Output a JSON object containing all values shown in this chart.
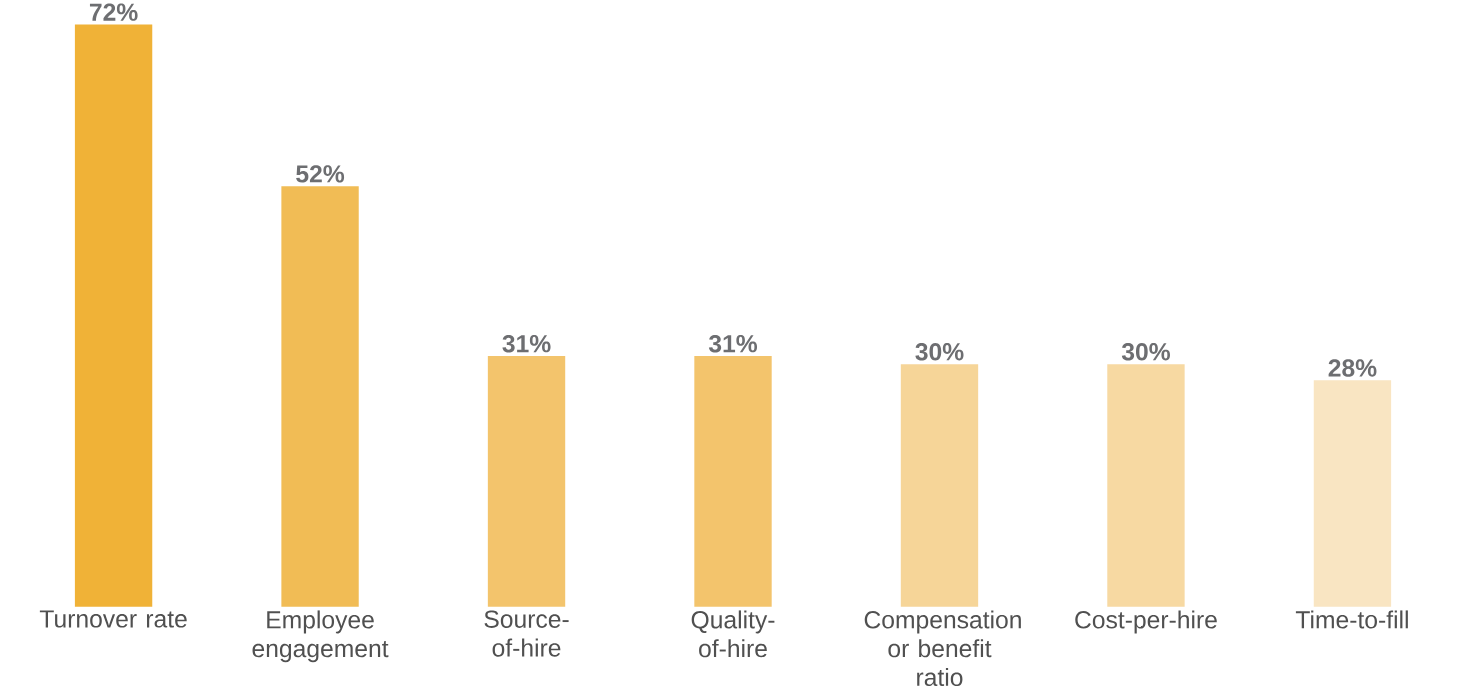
{
  "chart_data": {
    "type": "bar",
    "categories": [
      "Turnover rate",
      "Employee engagement",
      "Source-of-hire",
      "Quality-of-hire",
      "Compensation or benefit ratio",
      "Cost-per-hire",
      "Time-to-fill"
    ],
    "values": [
      72,
      52,
      31,
      31,
      30,
      30,
      28
    ],
    "value_labels": [
      "72%",
      "52%",
      "31%",
      "31%",
      "30%",
      "30%",
      "28%"
    ],
    "colors": [
      "#f0b237",
      "#f1bc55",
      "#f3c46c",
      "#f3c46c",
      "#f6d598",
      "#f7d9a2",
      "#f9e5c2"
    ]
  }
}
